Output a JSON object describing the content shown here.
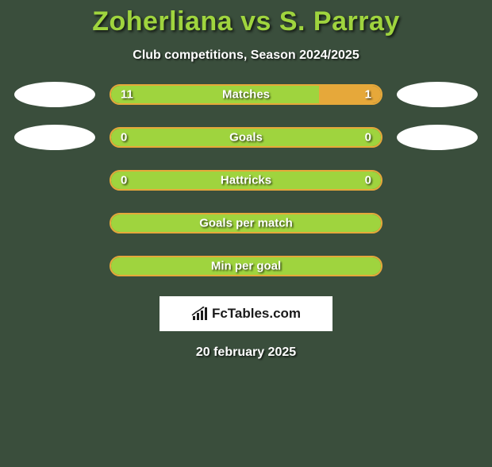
{
  "title": "Zoherliana vs S. Parray",
  "subtitle": "Club competitions, Season 2024/2025",
  "date": "20 february 2025",
  "logo_text": "FcTables.com",
  "colors": {
    "background": "#3a4e3c",
    "title": "#9fd43e",
    "text": "#ffffff",
    "bar_left": "#9fd43e",
    "bar_right": "#e6a83a",
    "bar_border": "#e6a83a",
    "ellipse": "#ffffff",
    "logo_bg": "#ffffff",
    "logo_text": "#1a1a1a"
  },
  "bars": [
    {
      "label": "Matches",
      "left_val": "11",
      "right_val": "1",
      "left_pct": 77,
      "right_pct": 23,
      "ellipse_left": true,
      "ellipse_right": true
    },
    {
      "label": "Goals",
      "left_val": "0",
      "right_val": "0",
      "left_pct": 100,
      "right_pct": 0,
      "ellipse_left": true,
      "ellipse_right": true
    },
    {
      "label": "Hattricks",
      "left_val": "0",
      "right_val": "0",
      "left_pct": 100,
      "right_pct": 0,
      "ellipse_left": false,
      "ellipse_right": false
    },
    {
      "label": "Goals per match",
      "left_val": "",
      "right_val": "",
      "left_pct": 100,
      "right_pct": 0,
      "ellipse_left": false,
      "ellipse_right": false
    },
    {
      "label": "Min per goal",
      "left_val": "",
      "right_val": "",
      "left_pct": 100,
      "right_pct": 0,
      "ellipse_left": false,
      "ellipse_right": false
    }
  ]
}
